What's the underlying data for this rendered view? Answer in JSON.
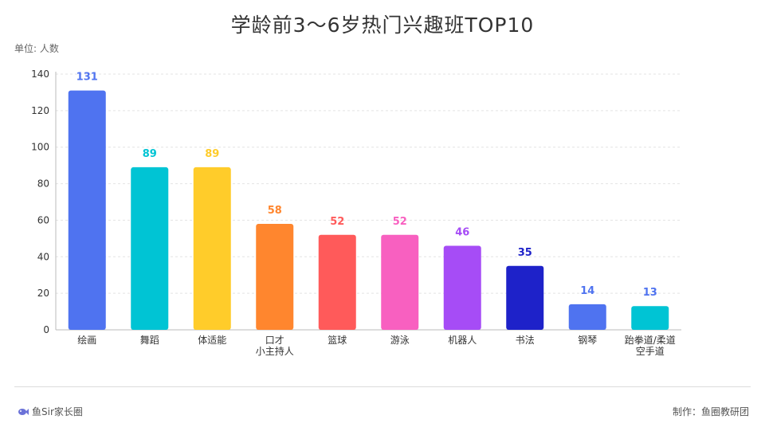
{
  "title": "学龄前3～6岁热门兴趣班TOP10",
  "unit_label": "单位: 人数",
  "footer": {
    "brand": "鱼Sir家长圈",
    "credit": "制作：鱼圈教研团"
  },
  "chart_data": {
    "type": "bar",
    "categories": [
      "绘画",
      "舞蹈",
      "体适能",
      "口才\n小主持人",
      "篮球",
      "游泳",
      "机器人",
      "书法",
      "钢琴",
      "跆拳道/柔道\n空手道"
    ],
    "values": [
      131,
      89,
      89,
      58,
      52,
      52,
      46,
      35,
      14,
      13
    ],
    "colors": [
      "#4F73F0",
      "#00C4D4",
      "#FFCC2A",
      "#FF862E",
      "#FF5A5A",
      "#F860C0",
      "#A64CF6",
      "#1E22C9",
      "#4F73F0",
      "#00C4D4"
    ],
    "label_colors": [
      "#4F73F0",
      "#00C4D4",
      "#FFCC2A",
      "#FF862E",
      "#FF5A5A",
      "#F860C0",
      "#A64CF6",
      "#1E22C9",
      "#4F73F0",
      "#4F73F0"
    ],
    "ylim": [
      0,
      140
    ],
    "yticks": [
      0,
      20,
      40,
      60,
      80,
      100,
      120,
      140
    ],
    "grid": true
  }
}
